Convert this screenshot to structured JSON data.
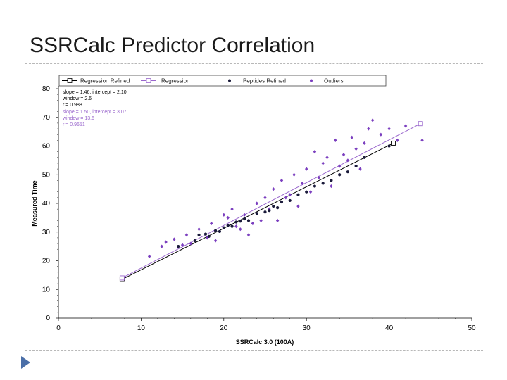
{
  "slide": {
    "title": "SSRCalc Predictor Correlation"
  },
  "legend": [
    {
      "label": "Regression Refined",
      "color": "#000000"
    },
    {
      "label": "Regression",
      "color": "#9966cc"
    },
    {
      "label": "Peptides Refined",
      "color": "#1a1a3a"
    },
    {
      "label": "Outliers",
      "color": "#7b3fbf"
    }
  ],
  "annotations": {
    "refined": [
      "slope = 1.46, intercept = 2.10",
      "window = 2.6",
      "r = 0.988"
    ],
    "all": [
      "slope = 1.50, intercept = 3.07",
      "window = 13.6",
      "r = 0.9651"
    ]
  },
  "chart_data": {
    "type": "scatter",
    "xlabel": "SSRCalc 3.0 (100A)",
    "ylabel": "Measured Time",
    "xlim": [
      0,
      50
    ],
    "ylim": [
      0,
      80
    ],
    "xticks": [
      0,
      10,
      20,
      30,
      40,
      50
    ],
    "yticks": [
      0,
      10,
      20,
      30,
      40,
      50,
      60,
      70,
      80
    ],
    "grid": false,
    "legend_position": "top",
    "series": [
      {
        "name": "Peptides Refined",
        "color": "#1a1a3a",
        "x": [
          14.5,
          16.5,
          17,
          17.8,
          18.2,
          19,
          19.5,
          20,
          20.5,
          21,
          21.5,
          22,
          22.5,
          23,
          24,
          25,
          25.5,
          26,
          26.5,
          27,
          28,
          29,
          30,
          31,
          32,
          33,
          34,
          35,
          36,
          37,
          40
        ],
        "y": [
          25,
          27,
          29,
          29.3,
          28.5,
          30.5,
          30.2,
          31.5,
          32.3,
          32,
          33.5,
          33.8,
          34.6,
          34,
          36.5,
          37,
          37.5,
          39,
          38.5,
          40.5,
          41,
          43,
          44,
          46,
          47,
          48,
          50,
          51,
          53,
          56,
          60
        ]
      },
      {
        "name": "Outliers",
        "color": "#7b3fbf",
        "x": [
          11,
          12.5,
          13,
          14,
          15,
          15.5,
          16,
          17,
          18,
          18.5,
          19,
          20,
          20.5,
          21,
          21.5,
          22,
          22.5,
          23,
          23.5,
          24,
          24.5,
          25,
          25.5,
          26,
          26.5,
          27,
          27.5,
          28,
          28.5,
          29,
          29.5,
          30,
          30.5,
          31,
          31.5,
          32,
          32.5,
          33,
          33.5,
          34,
          34.5,
          35,
          35.5,
          36,
          36.5,
          37,
          37.5,
          38,
          39,
          40,
          41,
          42,
          44
        ],
        "y": [
          21.5,
          25,
          26.5,
          27.5,
          25.5,
          29,
          26,
          31,
          28,
          33,
          27,
          36,
          35,
          38,
          32,
          31,
          36,
          29,
          33,
          40,
          34,
          42,
          38,
          45,
          34,
          48,
          42,
          43,
          50,
          39,
          47,
          52,
          44,
          58,
          49,
          54,
          56,
          46,
          62,
          53,
          57,
          55,
          63,
          59,
          52,
          61,
          66,
          69,
          64,
          66,
          62,
          67,
          62
        ]
      },
      {
        "name": "Regression Refined",
        "color": "#000000",
        "type": "line",
        "x": [
          7.7,
          40.5
        ],
        "y": [
          13.5,
          61.0
        ]
      },
      {
        "name": "Regression",
        "color": "#9966cc",
        "type": "line",
        "x": [
          7.7,
          43.8
        ],
        "y": [
          14.0,
          67.8
        ]
      }
    ]
  }
}
